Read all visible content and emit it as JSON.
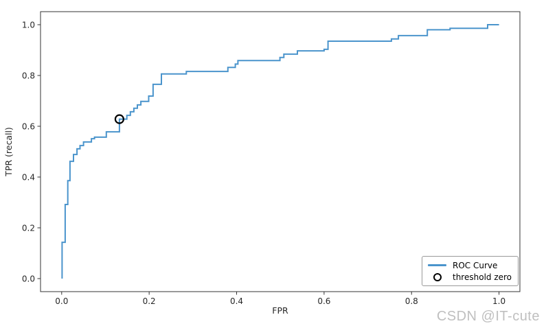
{
  "chart_data": {
    "type": "line",
    "title": "",
    "xlabel": "FPR",
    "ylabel": "TPR (recall)",
    "xlim": [
      -0.05,
      1.05
    ],
    "ylim": [
      -0.05,
      1.05
    ],
    "grid": false,
    "legend_position": "lower right",
    "x_tick_labels": [
      "0.0",
      "0.2",
      "0.4",
      "0.6",
      "0.8",
      "1.0"
    ],
    "y_tick_labels": [
      "0.0",
      "0.2",
      "0.4",
      "0.6",
      "0.8",
      "1.0"
    ],
    "series": [
      {
        "name": "ROC Curve",
        "type": "step-line",
        "color": "#4a94cc",
        "points": [
          [
            0.001,
            0.0
          ],
          [
            0.001,
            0.143
          ],
          [
            0.008,
            0.143
          ],
          [
            0.008,
            0.292
          ],
          [
            0.014,
            0.292
          ],
          [
            0.014,
            0.386
          ],
          [
            0.019,
            0.386
          ],
          [
            0.019,
            0.462
          ],
          [
            0.027,
            0.462
          ],
          [
            0.027,
            0.489
          ],
          [
            0.035,
            0.489
          ],
          [
            0.035,
            0.511
          ],
          [
            0.042,
            0.511
          ],
          [
            0.042,
            0.524
          ],
          [
            0.05,
            0.524
          ],
          [
            0.05,
            0.538
          ],
          [
            0.068,
            0.538
          ],
          [
            0.068,
            0.551
          ],
          [
            0.075,
            0.551
          ],
          [
            0.075,
            0.557
          ],
          [
            0.102,
            0.557
          ],
          [
            0.102,
            0.578
          ],
          [
            0.132,
            0.578
          ],
          [
            0.132,
            0.628
          ],
          [
            0.149,
            0.628
          ],
          [
            0.149,
            0.643
          ],
          [
            0.157,
            0.643
          ],
          [
            0.157,
            0.657
          ],
          [
            0.165,
            0.657
          ],
          [
            0.165,
            0.671
          ],
          [
            0.173,
            0.671
          ],
          [
            0.173,
            0.684
          ],
          [
            0.181,
            0.684
          ],
          [
            0.181,
            0.698
          ],
          [
            0.199,
            0.698
          ],
          [
            0.199,
            0.719
          ],
          [
            0.209,
            0.719
          ],
          [
            0.209,
            0.765
          ],
          [
            0.228,
            0.765
          ],
          [
            0.228,
            0.806
          ],
          [
            0.285,
            0.806
          ],
          [
            0.285,
            0.816
          ],
          [
            0.38,
            0.816
          ],
          [
            0.38,
            0.832
          ],
          [
            0.397,
            0.832
          ],
          [
            0.397,
            0.845
          ],
          [
            0.403,
            0.845
          ],
          [
            0.403,
            0.859
          ],
          [
            0.499,
            0.859
          ],
          [
            0.499,
            0.871
          ],
          [
            0.508,
            0.871
          ],
          [
            0.508,
            0.884
          ],
          [
            0.539,
            0.884
          ],
          [
            0.539,
            0.897
          ],
          [
            0.6,
            0.897
          ],
          [
            0.6,
            0.903
          ],
          [
            0.609,
            0.903
          ],
          [
            0.609,
            0.935
          ],
          [
            0.754,
            0.935
          ],
          [
            0.754,
            0.944
          ],
          [
            0.77,
            0.944
          ],
          [
            0.77,
            0.957
          ],
          [
            0.836,
            0.957
          ],
          [
            0.836,
            0.98
          ],
          [
            0.888,
            0.98
          ],
          [
            0.888,
            0.986
          ],
          [
            0.974,
            0.986
          ],
          [
            0.974,
            1.0
          ],
          [
            1.0,
            1.0
          ]
        ]
      },
      {
        "name": "threshold zero",
        "type": "marker",
        "marker": "open-circle",
        "color": "#000000",
        "point": [
          0.132,
          0.628
        ]
      }
    ]
  },
  "legend": {
    "items": [
      {
        "label": "ROC Curve",
        "swatch": "line"
      },
      {
        "label": "threshold zero",
        "swatch": "circle"
      }
    ]
  },
  "watermark": {
    "text": "CSDN @IT-cute",
    "color": "#bfbfbf"
  },
  "colors": {
    "curve": "#4a94cc",
    "marker_edge": "#000000",
    "axis_spine": "#333333",
    "tick_label": "#262626",
    "background": "#ffffff"
  }
}
